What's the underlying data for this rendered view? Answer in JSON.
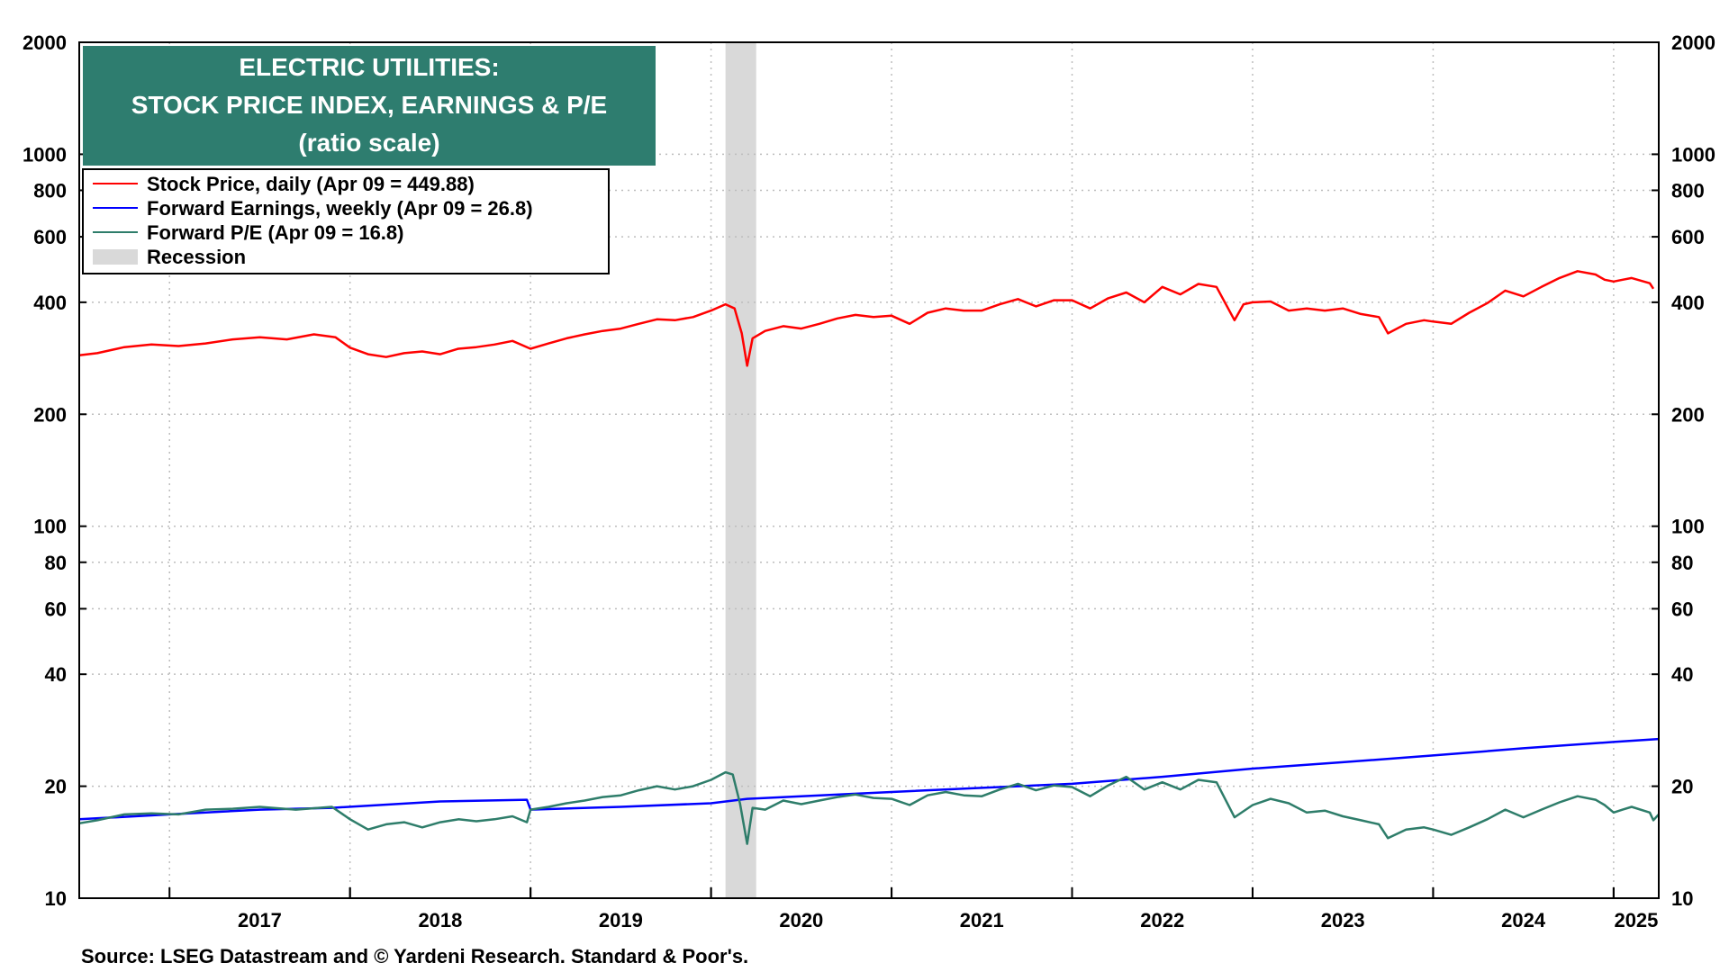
{
  "chart_data": {
    "type": "line",
    "title_lines": [
      "ELECTRIC UTILITIES:",
      "STOCK PRICE INDEX, EARNINGS & P/E",
      "(ratio scale)"
    ],
    "source": "Source: LSEG Datastream and © Yardeni Research. Standard & Poor's.",
    "y_scale": "log",
    "ylim": [
      10,
      2000
    ],
    "xlim": [
      2016.5,
      2025.25
    ],
    "grid": true,
    "legend_position": "top-left",
    "y_ticks": [
      10,
      20,
      40,
      60,
      80,
      100,
      200,
      400,
      600,
      800,
      1000,
      2000
    ],
    "y_tick_labels": [
      "10",
      "20",
      "40",
      "60",
      "80",
      "100",
      "200",
      "400",
      "600",
      "800",
      "1000",
      "2000"
    ],
    "x_tick_labels": [
      "2017",
      "2018",
      "2019",
      "2020",
      "2021",
      "2022",
      "2023",
      "2024",
      "2025"
    ],
    "recession": {
      "label": "Recession",
      "start": 2020.08,
      "end": 2020.25,
      "color": "#d9d9d9"
    },
    "series": [
      {
        "name": "Stock Price, daily (Apr 09 = 449.88)",
        "color": "#ff0000",
        "points": [
          [
            2016.5,
            288
          ],
          [
            2016.6,
            292
          ],
          [
            2016.75,
            303
          ],
          [
            2016.9,
            308
          ],
          [
            2017.05,
            305
          ],
          [
            2017.2,
            310
          ],
          [
            2017.35,
            318
          ],
          [
            2017.5,
            322
          ],
          [
            2017.65,
            318
          ],
          [
            2017.8,
            328
          ],
          [
            2017.92,
            322
          ],
          [
            2018.0,
            302
          ],
          [
            2018.1,
            290
          ],
          [
            2018.2,
            285
          ],
          [
            2018.3,
            292
          ],
          [
            2018.4,
            295
          ],
          [
            2018.5,
            290
          ],
          [
            2018.6,
            300
          ],
          [
            2018.7,
            303
          ],
          [
            2018.8,
            308
          ],
          [
            2018.9,
            315
          ],
          [
            2019.0,
            300
          ],
          [
            2019.1,
            310
          ],
          [
            2019.2,
            320
          ],
          [
            2019.3,
            328
          ],
          [
            2019.4,
            335
          ],
          [
            2019.5,
            340
          ],
          [
            2019.6,
            350
          ],
          [
            2019.7,
            360
          ],
          [
            2019.8,
            358
          ],
          [
            2019.9,
            365
          ],
          [
            2020.0,
            380
          ],
          [
            2020.08,
            395
          ],
          [
            2020.13,
            385
          ],
          [
            2020.17,
            330
          ],
          [
            2020.2,
            270
          ],
          [
            2020.23,
            320
          ],
          [
            2020.3,
            335
          ],
          [
            2020.4,
            345
          ],
          [
            2020.5,
            340
          ],
          [
            2020.6,
            350
          ],
          [
            2020.7,
            362
          ],
          [
            2020.8,
            370
          ],
          [
            2020.9,
            365
          ],
          [
            2021.0,
            368
          ],
          [
            2021.1,
            350
          ],
          [
            2021.2,
            375
          ],
          [
            2021.3,
            385
          ],
          [
            2021.4,
            380
          ],
          [
            2021.5,
            380
          ],
          [
            2021.6,
            395
          ],
          [
            2021.7,
            408
          ],
          [
            2021.8,
            390
          ],
          [
            2021.9,
            405
          ],
          [
            2022.0,
            405
          ],
          [
            2022.1,
            385
          ],
          [
            2022.2,
            410
          ],
          [
            2022.3,
            425
          ],
          [
            2022.4,
            400
          ],
          [
            2022.5,
            440
          ],
          [
            2022.6,
            420
          ],
          [
            2022.7,
            448
          ],
          [
            2022.8,
            440
          ],
          [
            2022.9,
            358
          ],
          [
            2022.95,
            395
          ],
          [
            2023.0,
            400
          ],
          [
            2023.1,
            402
          ],
          [
            2023.2,
            380
          ],
          [
            2023.3,
            385
          ],
          [
            2023.4,
            380
          ],
          [
            2023.5,
            385
          ],
          [
            2023.6,
            372
          ],
          [
            2023.7,
            365
          ],
          [
            2023.75,
            330
          ],
          [
            2023.85,
            350
          ],
          [
            2023.95,
            358
          ],
          [
            2024.0,
            355
          ],
          [
            2024.1,
            350
          ],
          [
            2024.2,
            375
          ],
          [
            2024.3,
            398
          ],
          [
            2024.4,
            430
          ],
          [
            2024.5,
            415
          ],
          [
            2024.6,
            440
          ],
          [
            2024.7,
            465
          ],
          [
            2024.8,
            485
          ],
          [
            2024.9,
            475
          ],
          [
            2024.95,
            460
          ],
          [
            2025.0,
            455
          ],
          [
            2025.05,
            460
          ],
          [
            2025.1,
            465
          ],
          [
            2025.2,
            450
          ],
          [
            2025.22,
            435
          ]
        ]
      },
      {
        "name": "Forward Earnings, weekly (Apr 09 = 26.8)",
        "color": "#0000ff",
        "points": [
          [
            2016.5,
            16.3
          ],
          [
            2017.0,
            16.8
          ],
          [
            2017.5,
            17.3
          ],
          [
            2017.9,
            17.5
          ],
          [
            2018.5,
            18.2
          ],
          [
            2018.98,
            18.4
          ],
          [
            2019.0,
            17.3
          ],
          [
            2019.5,
            17.6
          ],
          [
            2020.0,
            18.0
          ],
          [
            2020.2,
            18.5
          ],
          [
            2020.5,
            18.8
          ],
          [
            2021.0,
            19.3
          ],
          [
            2021.5,
            19.8
          ],
          [
            2022.0,
            20.3
          ],
          [
            2022.5,
            21.2
          ],
          [
            2023.0,
            22.3
          ],
          [
            2023.5,
            23.2
          ],
          [
            2024.0,
            24.2
          ],
          [
            2024.5,
            25.3
          ],
          [
            2025.0,
            26.3
          ],
          [
            2025.25,
            26.8
          ]
        ]
      },
      {
        "name": "Forward P/E (Apr 09 = 16.8)",
        "color": "#2e7d6a",
        "points": [
          [
            2016.5,
            15.9
          ],
          [
            2016.6,
            16.2
          ],
          [
            2016.75,
            16.8
          ],
          [
            2016.9,
            16.9
          ],
          [
            2017.05,
            16.8
          ],
          [
            2017.2,
            17.3
          ],
          [
            2017.35,
            17.4
          ],
          [
            2017.5,
            17.6
          ],
          [
            2017.7,
            17.3
          ],
          [
            2017.9,
            17.6
          ],
          [
            2018.0,
            16.3
          ],
          [
            2018.1,
            15.3
          ],
          [
            2018.2,
            15.8
          ],
          [
            2018.3,
            16.0
          ],
          [
            2018.4,
            15.5
          ],
          [
            2018.5,
            16.0
          ],
          [
            2018.6,
            16.3
          ],
          [
            2018.7,
            16.1
          ],
          [
            2018.8,
            16.3
          ],
          [
            2018.9,
            16.6
          ],
          [
            2018.98,
            16.0
          ],
          [
            2019.0,
            17.3
          ],
          [
            2019.1,
            17.6
          ],
          [
            2019.2,
            18.0
          ],
          [
            2019.3,
            18.3
          ],
          [
            2019.4,
            18.7
          ],
          [
            2019.5,
            18.9
          ],
          [
            2019.6,
            19.5
          ],
          [
            2019.7,
            20.0
          ],
          [
            2019.8,
            19.6
          ],
          [
            2019.9,
            20.0
          ],
          [
            2020.0,
            20.8
          ],
          [
            2020.08,
            21.8
          ],
          [
            2020.12,
            21.5
          ],
          [
            2020.16,
            18.0
          ],
          [
            2020.2,
            14.0
          ],
          [
            2020.23,
            17.5
          ],
          [
            2020.3,
            17.3
          ],
          [
            2020.4,
            18.3
          ],
          [
            2020.5,
            17.9
          ],
          [
            2020.6,
            18.3
          ],
          [
            2020.7,
            18.7
          ],
          [
            2020.8,
            19.0
          ],
          [
            2020.9,
            18.6
          ],
          [
            2021.0,
            18.5
          ],
          [
            2021.1,
            17.8
          ],
          [
            2021.2,
            18.9
          ],
          [
            2021.3,
            19.3
          ],
          [
            2021.4,
            18.9
          ],
          [
            2021.5,
            18.8
          ],
          [
            2021.6,
            19.6
          ],
          [
            2021.7,
            20.3
          ],
          [
            2021.8,
            19.5
          ],
          [
            2021.9,
            20.1
          ],
          [
            2022.0,
            19.9
          ],
          [
            2022.1,
            18.8
          ],
          [
            2022.2,
            20.1
          ],
          [
            2022.3,
            21.2
          ],
          [
            2022.4,
            19.6
          ],
          [
            2022.5,
            20.5
          ],
          [
            2022.6,
            19.6
          ],
          [
            2022.7,
            20.8
          ],
          [
            2022.8,
            20.5
          ],
          [
            2022.9,
            16.5
          ],
          [
            2023.0,
            17.8
          ],
          [
            2023.1,
            18.5
          ],
          [
            2023.2,
            18.0
          ],
          [
            2023.3,
            17.0
          ],
          [
            2023.4,
            17.2
          ],
          [
            2023.5,
            16.6
          ],
          [
            2023.6,
            16.2
          ],
          [
            2023.7,
            15.8
          ],
          [
            2023.75,
            14.5
          ],
          [
            2023.85,
            15.3
          ],
          [
            2023.95,
            15.5
          ],
          [
            2024.0,
            15.3
          ],
          [
            2024.1,
            14.8
          ],
          [
            2024.2,
            15.5
          ],
          [
            2024.3,
            16.3
          ],
          [
            2024.4,
            17.3
          ],
          [
            2024.5,
            16.5
          ],
          [
            2024.6,
            17.3
          ],
          [
            2024.7,
            18.1
          ],
          [
            2024.8,
            18.8
          ],
          [
            2024.9,
            18.4
          ],
          [
            2024.95,
            17.8
          ],
          [
            2025.0,
            17.0
          ],
          [
            2025.05,
            17.3
          ],
          [
            2025.1,
            17.6
          ],
          [
            2025.2,
            17.0
          ],
          [
            2025.22,
            16.2
          ],
          [
            2025.25,
            16.8
          ]
        ]
      }
    ]
  }
}
